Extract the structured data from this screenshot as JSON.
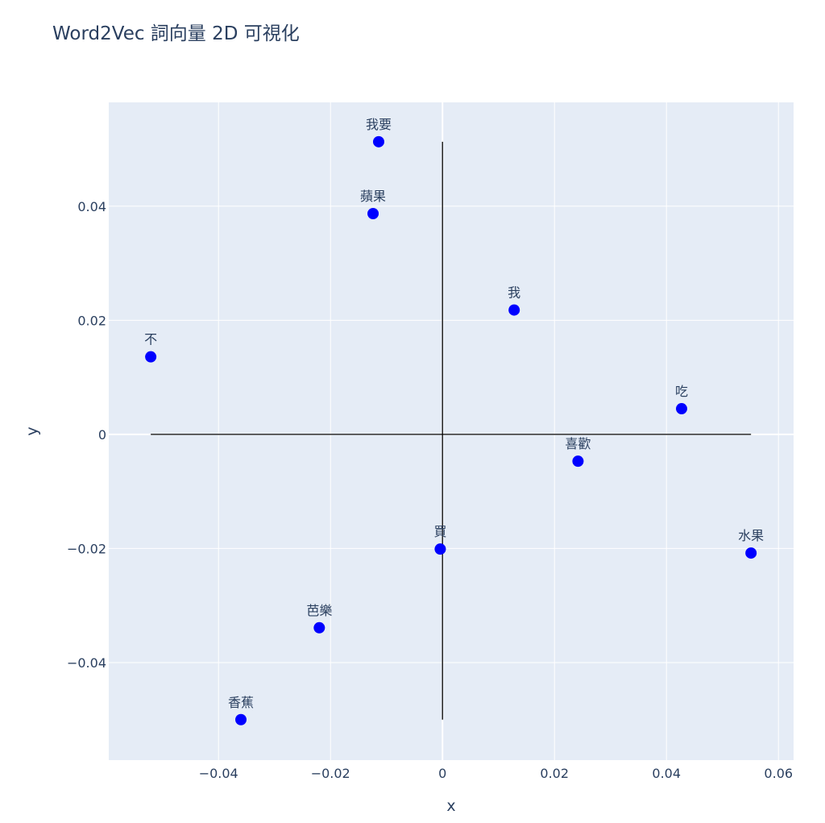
{
  "chart_data": {
    "type": "scatter",
    "title": "Word2Vec 詞向量 2D 可視化",
    "xlabel": "x",
    "ylabel": "y",
    "xlim": [
      -0.0596,
      0.0627
    ],
    "ylim": [
      -0.0571,
      0.0582
    ],
    "xticks": [
      -0.04,
      -0.02,
      0,
      0.02,
      0.04,
      0.06
    ],
    "xtick_labels": [
      "−0.04",
      "−0.02",
      "0",
      "0.02",
      "0.04",
      "0.06"
    ],
    "yticks": [
      -0.04,
      -0.02,
      0,
      0.02,
      0.04
    ],
    "ytick_labels": [
      "−0.04",
      "−0.02",
      "0",
      "0.02",
      "0.04"
    ],
    "grid": true,
    "background": "#e5ecf6",
    "marker_color": "#0000ff",
    "points": [
      {
        "label": "我要",
        "x": -0.0114,
        "y": 0.0513
      },
      {
        "label": "蘋果",
        "x": -0.0124,
        "y": 0.0387
      },
      {
        "label": "我",
        "x": 0.0128,
        "y": 0.0218
      },
      {
        "label": "不",
        "x": -0.0521,
        "y": 0.0136
      },
      {
        "label": "吃",
        "x": 0.0427,
        "y": 0.0045
      },
      {
        "label": "喜歡",
        "x": 0.0242,
        "y": -0.0047
      },
      {
        "label": "買",
        "x": -0.0004,
        "y": -0.0201
      },
      {
        "label": "水果",
        "x": 0.0551,
        "y": -0.0208
      },
      {
        "label": "芭樂",
        "x": -0.022,
        "y": -0.0339
      },
      {
        "label": "香蕉",
        "x": -0.036,
        "y": -0.05
      }
    ],
    "reference_lines": [
      {
        "x": [
          -0.0521,
          0.0551
        ],
        "y": [
          0,
          0
        ],
        "color": "#000000"
      },
      {
        "x": [
          0,
          0
        ],
        "y": [
          -0.05,
          0.0513
        ],
        "color": "#000000"
      }
    ]
  }
}
